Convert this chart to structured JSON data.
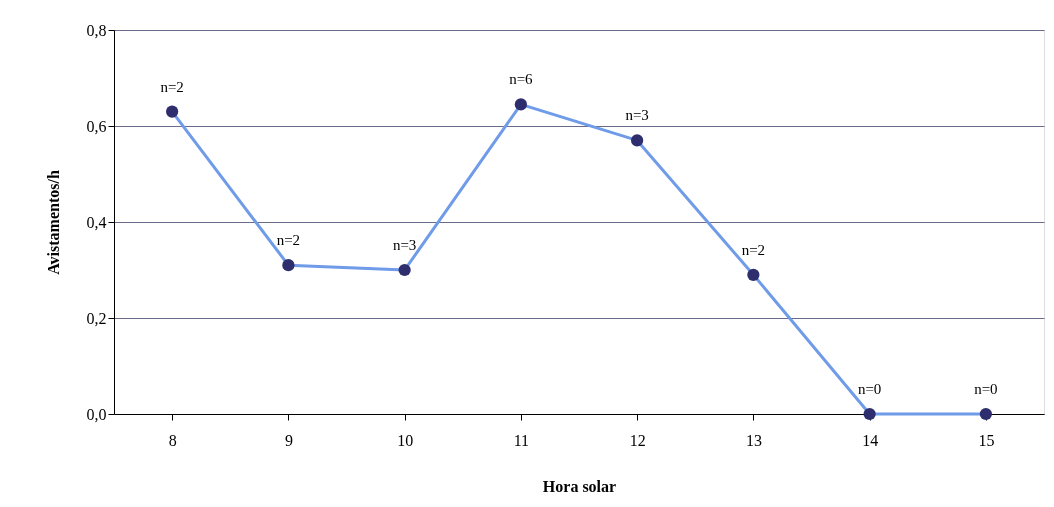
{
  "chart_data": {
    "type": "line",
    "xlabel": "Hora solar",
    "ylabel": "Avistamentos/h",
    "categories": [
      "8",
      "9",
      "10",
      "11",
      "12",
      "13",
      "14",
      "15"
    ],
    "series": [
      {
        "color": "#6f9be8",
        "values": [
          0.63,
          0.31,
          0.3,
          0.645,
          0.57,
          0.29,
          0.0,
          0.0
        ]
      }
    ],
    "ylim": [
      0,
      0.8
    ],
    "yticks": [
      {
        "value": 0,
        "label": "0,0"
      },
      {
        "value": 0.2,
        "label": "0,2"
      },
      {
        "value": 0.4,
        "label": "0,4"
      },
      {
        "value": 0.6,
        "label": "0,6"
      },
      {
        "value": 0.8,
        "label": "0,8"
      }
    ],
    "grid": "y",
    "marker": "circle",
    "annotations": [
      {
        "text": "n=2",
        "x": "8",
        "y": 0.63
      },
      {
        "text": "n=2",
        "x": "9",
        "y": 0.31
      },
      {
        "text": "n=3",
        "x": "10",
        "y": 0.3
      },
      {
        "text": "n=6",
        "x": "11",
        "y": 0.645
      },
      {
        "text": "n=3",
        "x": "12",
        "y": 0.57
      },
      {
        "text": "n=2",
        "x": "13",
        "y": 0.29
      },
      {
        "text": "n=0",
        "x": "14",
        "y": 0.0
      },
      {
        "text": "n=0",
        "x": "15",
        "y": 0.0
      }
    ]
  }
}
